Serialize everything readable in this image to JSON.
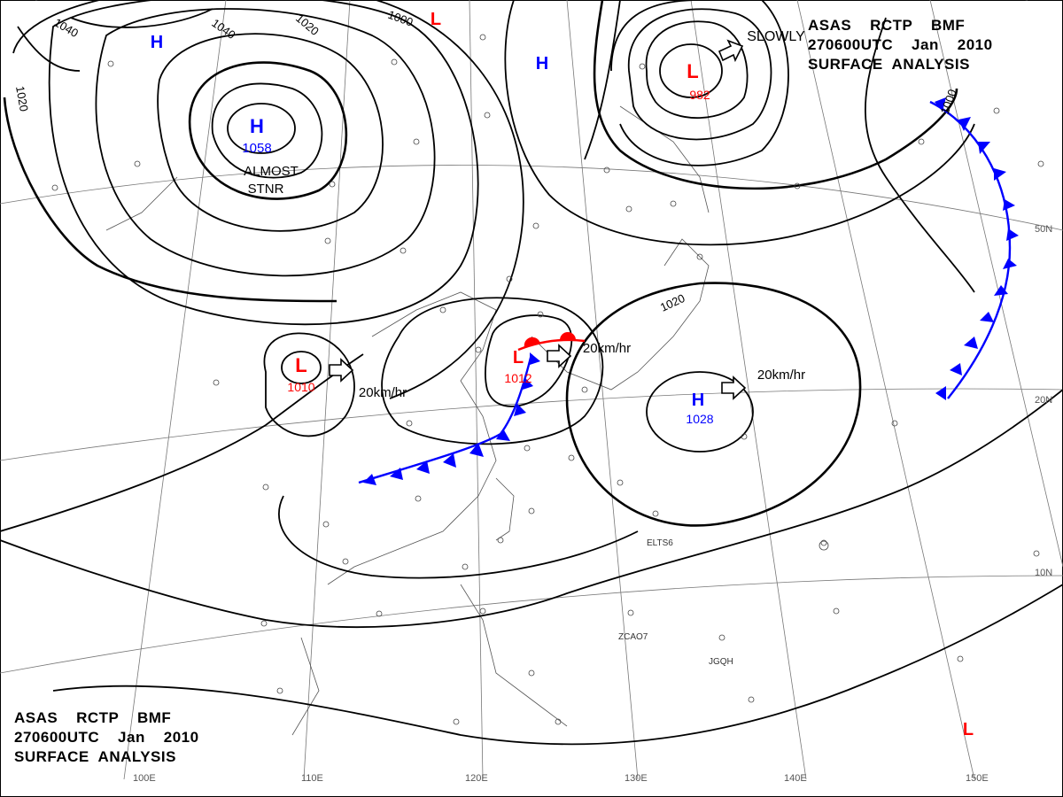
{
  "header": {
    "line1": "ASAS    RCTP    BMF",
    "line2": "270600UTC    Jan    2010",
    "line3": "SURFACE  ANALYSIS"
  },
  "pressure_centers": [
    {
      "type": "H",
      "value": "1058",
      "note": "ALMOST",
      "note2": "STNR"
    },
    {
      "type": "L",
      "value": "982",
      "note": "SLOWLY"
    },
    {
      "type": "L",
      "value": "1010",
      "speed": "20km/hr"
    },
    {
      "type": "L",
      "value": "1012",
      "speed": "20km/hr"
    },
    {
      "type": "H",
      "value": "1028",
      "speed": "20km/hr"
    },
    {
      "type": "H",
      "value": ""
    },
    {
      "type": "H",
      "value": ""
    },
    {
      "type": "L",
      "value": ""
    },
    {
      "type": "L",
      "value": ""
    }
  ],
  "isobar_labels": [
    "1040",
    "1040",
    "1020",
    "1020",
    "1000",
    "1000",
    "1020"
  ],
  "grid_labels": {
    "lon": [
      "100E",
      "110E",
      "120E",
      "130E",
      "140E",
      "150E"
    ],
    "lat": [
      "50N",
      "20N",
      "10N"
    ]
  },
  "station_labels": [
    "ELTS6",
    "ZCAO7",
    "JGQH"
  ],
  "colors": {
    "high": "#0000ff",
    "low": "#ff0000",
    "cold_front": "#0000ff",
    "warm_front": "#ff0000",
    "isobar": "#000000"
  }
}
